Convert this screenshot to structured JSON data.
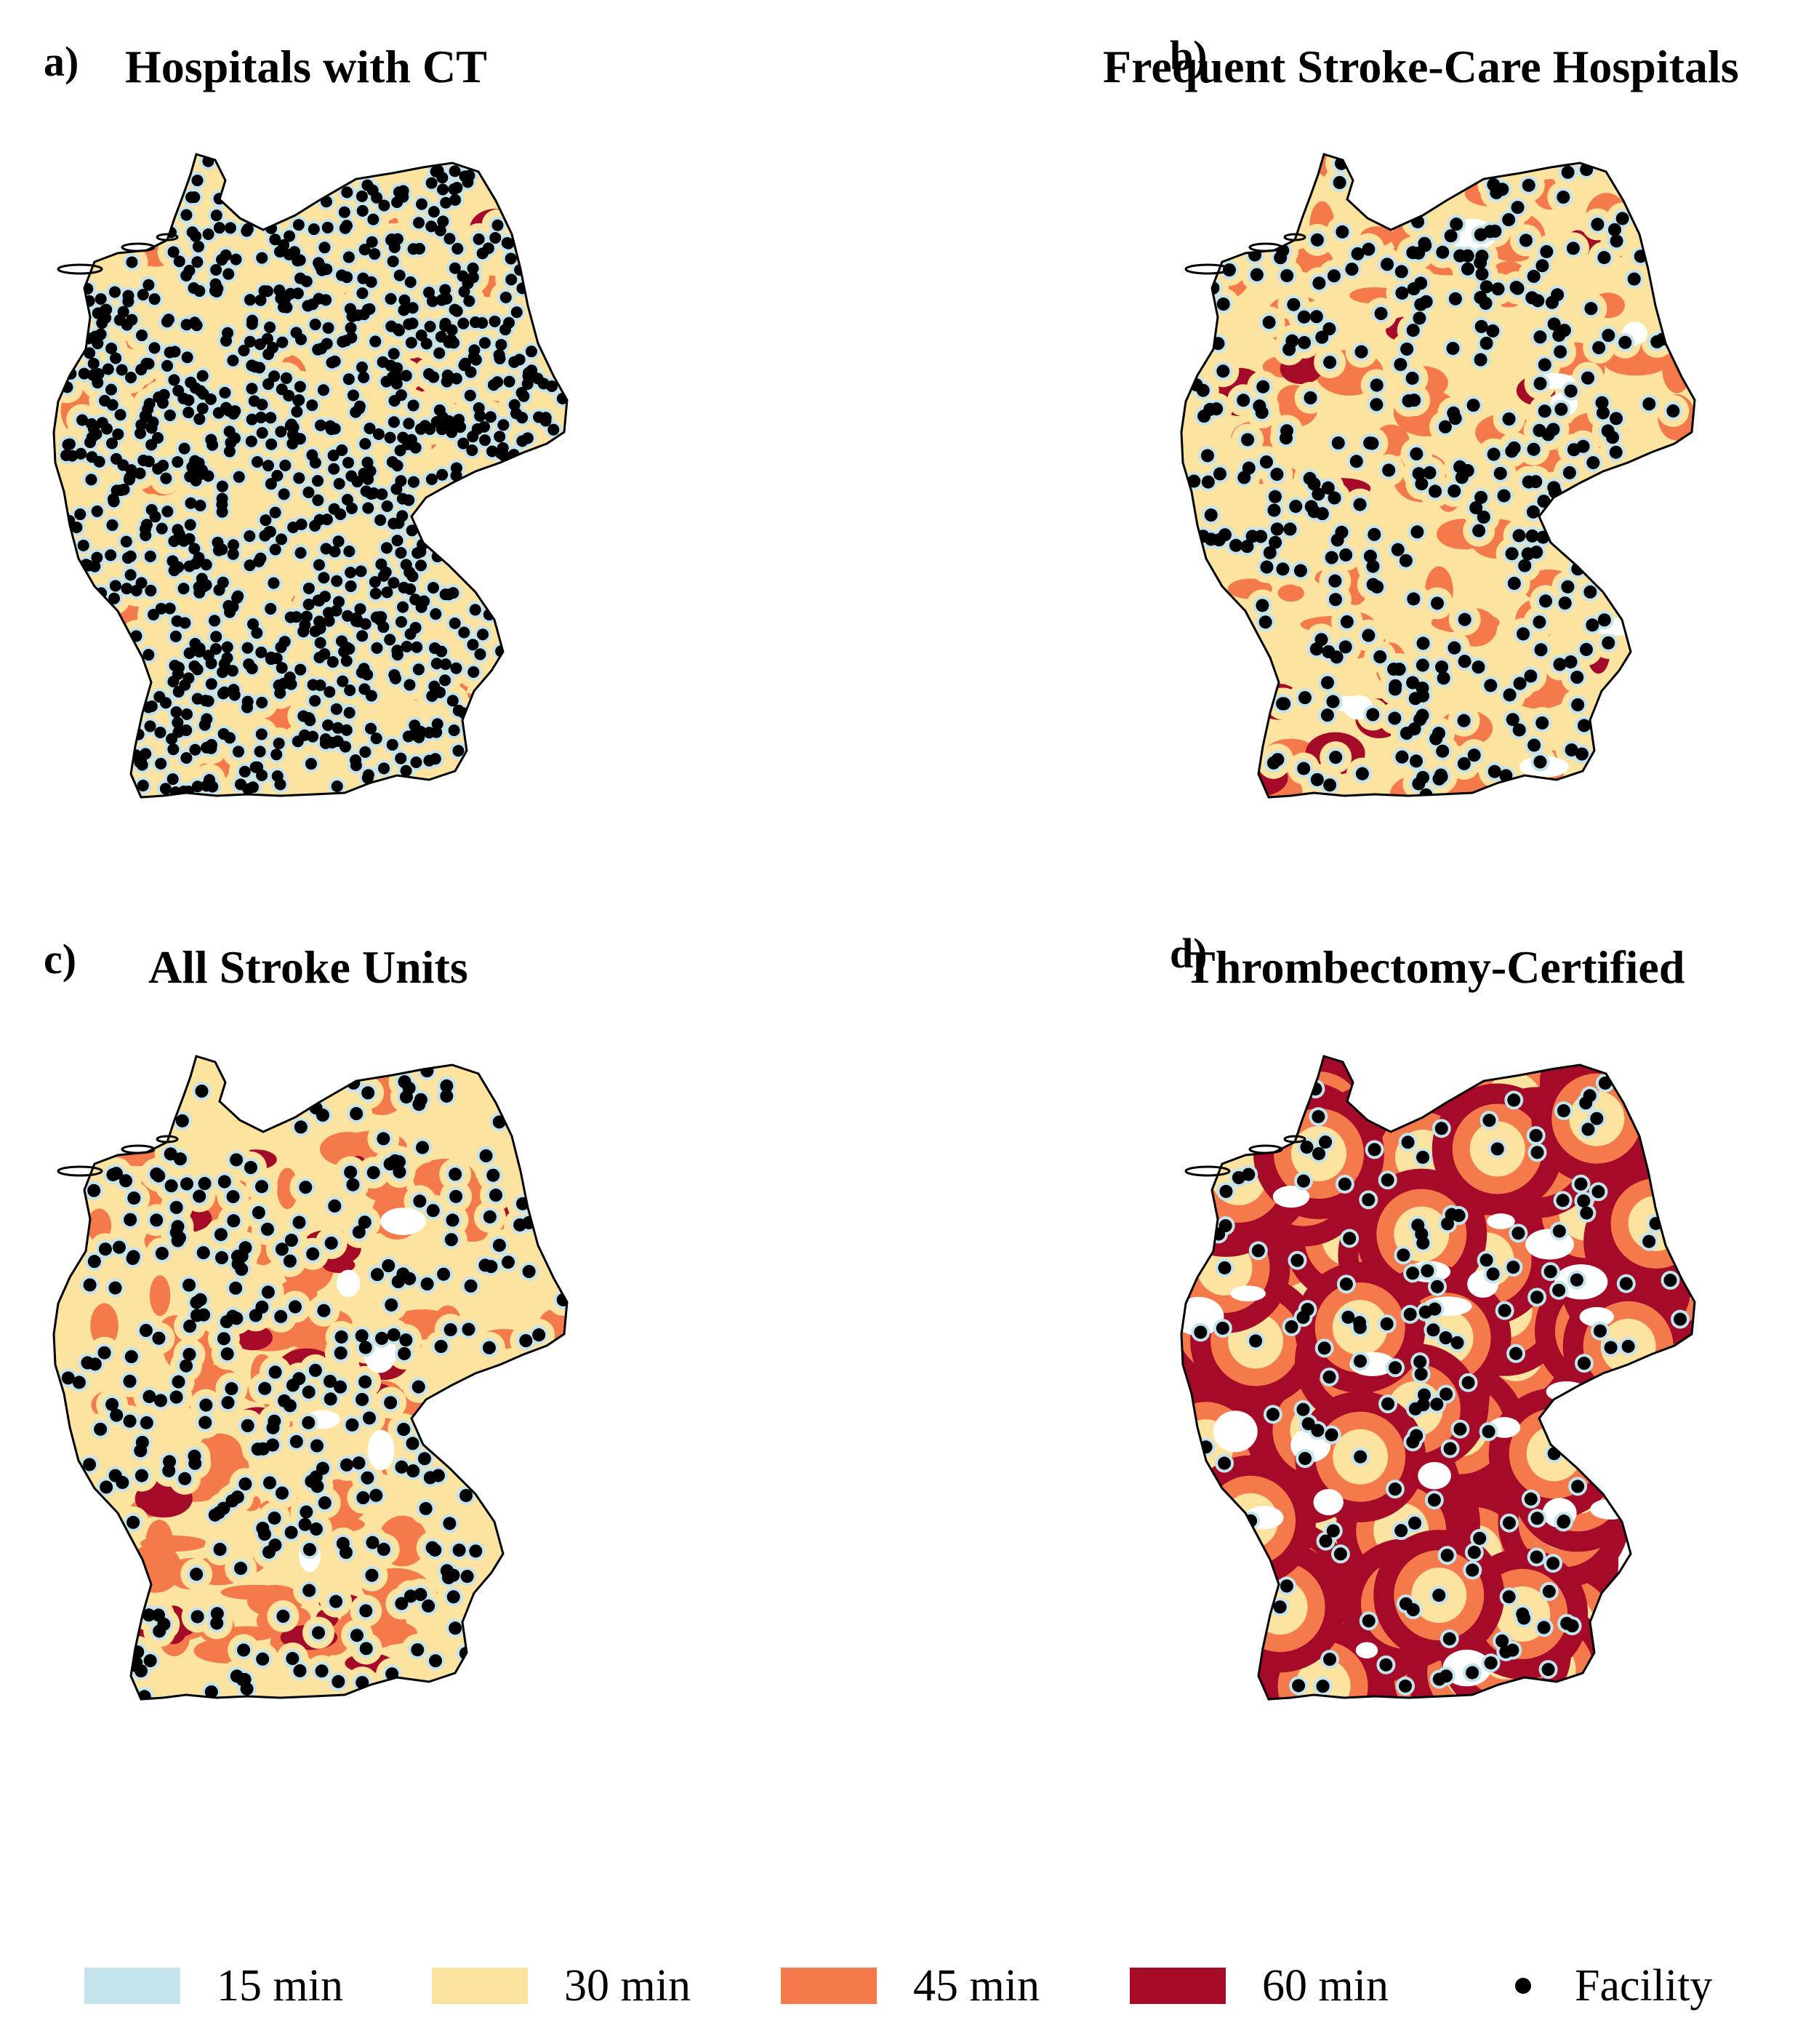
{
  "panels": [
    {
      "letter": "a)",
      "title": "Hospitals with CT",
      "coverage": "dense"
    },
    {
      "letter": "b)",
      "title": "Frequent Stroke-Care Hospitals",
      "coverage": "medium"
    },
    {
      "letter": "c)",
      "title": "All Stroke Units",
      "coverage": "medium-sparse"
    },
    {
      "letter": "d)",
      "title": "Thrombectomy-Certified",
      "coverage": "sparse"
    }
  ],
  "legend": {
    "items": [
      {
        "label": "15 min",
        "color": "#c4e3ec"
      },
      {
        "label": "30 min",
        "color": "#fde3a0"
      },
      {
        "label": "45 min",
        "color": "#f4794b"
      },
      {
        "label": "60 min",
        "color": "#a50b28"
      }
    ],
    "facility_label": "Facility",
    "facility_color": "#000000"
  }
}
